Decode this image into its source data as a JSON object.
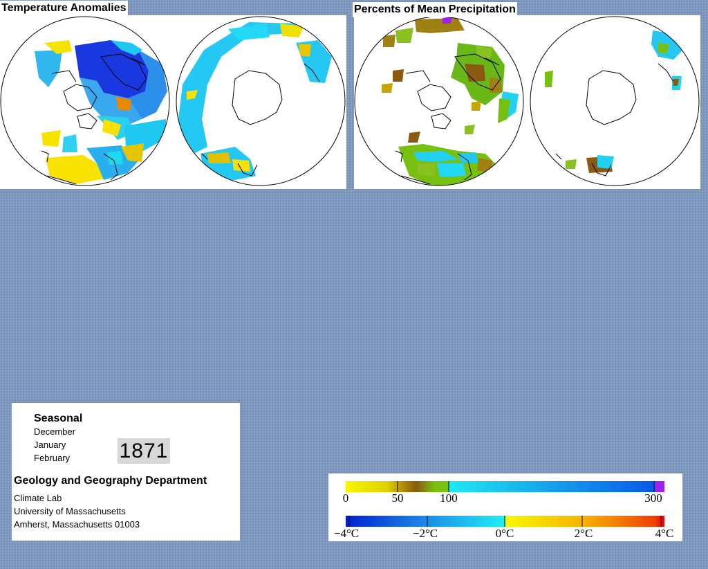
{
  "temperature_panel": {
    "title": "Temperature Anomalies"
  },
  "precipitation_panel": {
    "title": "Percents of Mean Precipitation"
  },
  "info": {
    "season_label": "Seasonal",
    "months": [
      "December",
      "January",
      "February"
    ],
    "year": "1871",
    "department": "Geology and Geography Department",
    "address_lines": [
      "Climate Lab",
      "University of Massachusetts",
      "Amherst, Massachusetts 01003"
    ]
  },
  "precipitation_scale": {
    "ticks": [
      "0",
      "50",
      "100",
      "300"
    ],
    "colors": [
      "#f7f700",
      "#c4a400",
      "#8a5a10",
      "#78c010",
      "#20e8f0",
      "#0a58e8",
      "#a020f0"
    ]
  },
  "temperature_scale": {
    "ticks": [
      "−4°C",
      "−2°C",
      "0°C",
      "2°C",
      "4°C"
    ],
    "colors": [
      "#0020d0",
      "#1c8ae8",
      "#1ff0f8",
      "#f8f800",
      "#f87000",
      "#e80000"
    ]
  }
}
